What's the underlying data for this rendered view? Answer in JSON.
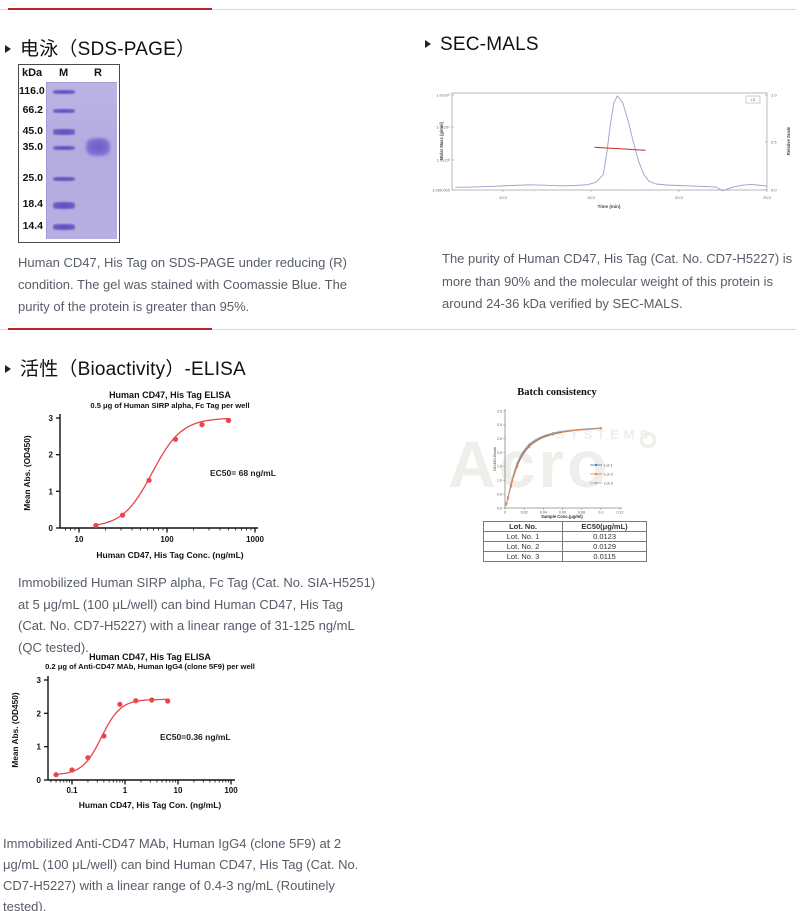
{
  "page": {
    "bg": "#ffffff",
    "accent": "#c22127"
  },
  "headers": {
    "sds": "电泳（SDS-PAGE）",
    "sec_mals": "SEC-MALS",
    "bioactivity": "活性（Bioactivity）-ELISA"
  },
  "captions": {
    "sds": "Human CD47, His Tag on SDS-PAGE under reducing (R)\ncondition. The gel was stained with Coomassie Blue. The\npurity of the protein is greater than 95%.",
    "sec_mals": "The purity of Human CD47, His Tag (Cat. No. CD7-H5227) is\nmore than 90% and the molecular weight of this protein is\naround 24-36 kDa verified by SEC-MALS.",
    "elisa_sirp": "Immobilized Human SIRP alpha, Fc Tag (Cat. No. SIA-H5251)\nat 5 μg/mL (100 μL/well) can bind Human CD47, His Tag\n(Cat. No. CD7-H5227) with a linear range of 31-125 ng/mL\n(QC tested).",
    "elisa_mab": "Immobilized Anti-CD47 MAb, Human IgG4 (clone 5F9) at 2\nμg/mL (100 μL/well) can bind Human CD47, His Tag (Cat. No.\nCD7-H5227) with a linear range of 0.4-3 ng/mL (Routinely\ntested)."
  },
  "sds_gel": {
    "unit": "kDa",
    "lanes": [
      "M",
      "R"
    ],
    "colors": {
      "gel_bg": "#b6addf",
      "band": "#6a5cc6",
      "sample": "#7b6cd0"
    },
    "markers": [
      {
        "kda": "116.0",
        "y": 27,
        "h": 4
      },
      {
        "kda": "66.2",
        "y": 46,
        "h": 4.5
      },
      {
        "kda": "45.0",
        "y": 67,
        "h": 5.5
      },
      {
        "kda": "35.0",
        "y": 83,
        "h": 4.5
      },
      {
        "kda": "25.0",
        "y": 114,
        "h": 4.5
      },
      {
        "kda": "18.4",
        "y": 140,
        "h": 7
      },
      {
        "kda": "14.4",
        "y": 162,
        "h": 6.5
      }
    ],
    "sample_band": {
      "lane": "R",
      "approx_kda": "35",
      "y": 82,
      "h": 18
    }
  },
  "chart_data": [
    {
      "id": "sec_mals",
      "type": "line",
      "xlabel": "Time (min)",
      "ylabel_left": "Molar Mass (g/mol)",
      "ylabel_right": "Relative Scale",
      "xticks": [
        "10.0",
        "15.0",
        "20.0",
        "25.0"
      ],
      "yticks_left": [
        "1.0x10⁵",
        "1.0x10⁴",
        "1.0x10³",
        "1,000.000"
      ],
      "yticks_right": [
        "1.0",
        "0.5",
        "0.0"
      ],
      "legend": "LS",
      "trace_color": "#99a1c9",
      "overlay_color": "#cf4040",
      "series": [
        [
          7.3,
          0.028
        ],
        [
          8.5,
          0.032
        ],
        [
          9.5,
          0.038
        ],
        [
          10.5,
          0.046
        ],
        [
          11.5,
          0.054
        ],
        [
          12.4,
          0.05
        ],
        [
          13.2,
          0.043
        ],
        [
          14.1,
          0.046
        ],
        [
          14.8,
          0.055
        ],
        [
          15.3,
          0.08
        ],
        [
          15.7,
          0.16
        ],
        [
          15.9,
          0.38
        ],
        [
          16.1,
          0.68
        ],
        [
          16.3,
          0.9
        ],
        [
          16.5,
          0.97
        ],
        [
          16.8,
          0.9
        ],
        [
          17.1,
          0.72
        ],
        [
          17.4,
          0.5
        ],
        [
          17.7,
          0.3
        ],
        [
          18.0,
          0.16
        ],
        [
          18.3,
          0.09
        ],
        [
          18.7,
          0.062
        ],
        [
          19.3,
          0.052
        ],
        [
          20.0,
          0.046
        ],
        [
          20.8,
          0.04
        ],
        [
          21.5,
          0.036
        ],
        [
          22.1,
          0.03
        ],
        [
          22.5,
          -0.008
        ],
        [
          23.0,
          0.028
        ],
        [
          23.6,
          0.05
        ],
        [
          24.1,
          0.058
        ],
        [
          24.7,
          0.046
        ],
        [
          25.0,
          0.042
        ]
      ],
      "overlay": {
        "name": "measured molar mass 24-36 kDa",
        "x1": 15.2,
        "x2": 18.1,
        "rel": 0.43
      }
    },
    {
      "id": "elisa_sirp",
      "type": "scatter",
      "x_scale": "log",
      "title": "Human CD47, His Tag ELISA",
      "subtitle": "0.5 μg of Human SIRP alpha, Fc Tag per well",
      "xlabel": "Human CD47, His Tag Conc. (ng/mL)",
      "ylabel": "Mean Abs. (OD450)",
      "annotation": "EC50= 68 ng/mL",
      "x": [
        15.6,
        31.25,
        62.5,
        125,
        250,
        500
      ],
      "y": [
        0.07,
        0.35,
        1.3,
        2.42,
        2.82,
        2.93
      ],
      "xticks": [
        10,
        100,
        1000
      ],
      "yticks": [
        0,
        1,
        2,
        3
      ],
      "ylim": [
        0,
        3
      ],
      "fit": {
        "bottom": 0.02,
        "top": 3.0,
        "ec50": 68,
        "hill": 2.6
      },
      "color": "#e8464b"
    },
    {
      "id": "batch",
      "type": "line",
      "title": "Batch consistency",
      "xlabel": "Sample Conc.(μg/ml)",
      "ylabel": "OD450-Blank",
      "xticks": [
        0,
        0.02,
        0.04,
        0.06,
        0.08,
        0.1,
        0.12
      ],
      "yticks": [
        0,
        0.5,
        1,
        1.5,
        2,
        2.5,
        3,
        3.5
      ],
      "sample_x": [
        0.0016,
        0.0031,
        0.0062,
        0.0125,
        0.025,
        0.05,
        0.1
      ],
      "fit": {
        "bottom": 0.03,
        "top": 3.0,
        "hill": 1.5
      },
      "series": [
        {
          "name": "Lot 1",
          "color": "#4472c4",
          "ec50": 0.0123
        },
        {
          "name": "Lot 2",
          "color": "#ed7d31",
          "ec50": 0.0129
        },
        {
          "name": "Lot 3",
          "color": "#a5a5a5",
          "ec50": 0.0115
        }
      ]
    },
    {
      "id": "elisa_mab",
      "type": "scatter",
      "x_scale": "log",
      "title": "Human CD47, His Tag ELISA",
      "subtitle": "0.2 μg of Anti-CD47 MAb, Human IgG4 (clone 5F9) per well",
      "xlabel": "Human CD47, His Tag Con. (ng/mL)",
      "ylabel": "Mean Abs. (OD450)",
      "annotation": "EC50=0.36 ng/mL",
      "x": [
        0.05,
        0.1,
        0.2,
        0.4,
        0.8,
        1.6,
        3.2,
        6.4
      ],
      "y": [
        0.16,
        0.3,
        0.67,
        1.32,
        2.27,
        2.38,
        2.4,
        2.37
      ],
      "xticks": [
        0.1,
        1,
        10,
        100
      ],
      "yticks": [
        0,
        1,
        2,
        3
      ],
      "ylim": [
        0,
        3
      ],
      "fit": {
        "bottom": 0.15,
        "top": 2.42,
        "ec50": 0.36,
        "hill": 2.4
      },
      "color": "#e8464b"
    }
  ],
  "batch_table": {
    "headers": [
      "Lot. No.",
      "EC50(μg/mL)"
    ],
    "rows": [
      [
        "Lot. No. 1",
        "0.0123"
      ],
      [
        "Lot. No. 2",
        "0.0129"
      ],
      [
        "Lot. No. 3",
        "0.0115"
      ]
    ]
  },
  "watermark": {
    "big": "Acro",
    "small": "SYSTEMS"
  }
}
